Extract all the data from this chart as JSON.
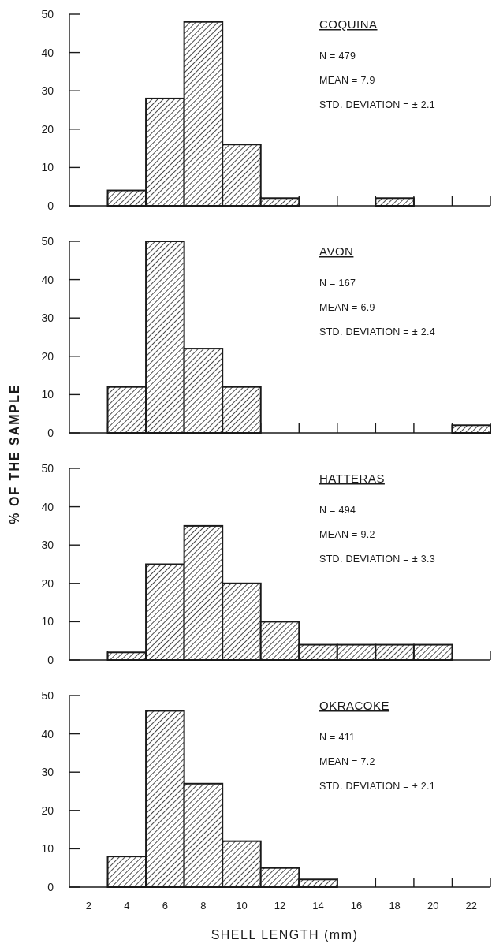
{
  "chart_data": [
    {
      "type": "histogram",
      "title": "COQUINA",
      "annotations": [
        "N = 479",
        "MEAN = 7.9",
        "STD. DEVIATION = ± 2.1"
      ],
      "bins": [
        3,
        5,
        7,
        9,
        11,
        13,
        15,
        17,
        19,
        21,
        23
      ],
      "values": [
        4,
        28,
        48,
        16,
        2,
        0,
        0,
        2,
        0,
        0
      ],
      "color": "#1a1a1a",
      "xlim": [
        1,
        23
      ],
      "ylim": [
        0,
        50
      ],
      "yticks": [
        0,
        10,
        20,
        30,
        40,
        50
      ],
      "xticks": [
        {
          "value": 3,
          "label": null
        },
        {
          "value": 5,
          "label": null
        },
        {
          "value": 7,
          "label": null
        },
        {
          "value": 9,
          "label": null
        },
        {
          "value": 11,
          "label": null
        },
        {
          "value": 13,
          "label": null
        },
        {
          "value": 15,
          "label": null
        },
        {
          "value": 17,
          "label": null
        },
        {
          "value": 19,
          "label": null
        },
        {
          "value": 21,
          "label": null
        },
        {
          "value": 23,
          "label": null
        }
      ],
      "tick_labels": "y",
      "grid": false
    },
    {
      "type": "histogram",
      "title": "AVON",
      "ylabel": "% OF THE SAMPLE",
      "annotations": [
        "N = 167",
        "MEAN = 6.9",
        "STD. DEVIATION = ± 2.4"
      ],
      "bins": [
        3,
        5,
        7,
        9,
        11,
        13,
        15,
        17,
        19,
        21,
        23
      ],
      "values": [
        12,
        50,
        22,
        12,
        0,
        0,
        0,
        0,
        0,
        2
      ],
      "color": "#1a1a1a",
      "xlim": [
        1,
        23
      ],
      "ylim": [
        0,
        50
      ],
      "yticks": [
        0,
        10,
        20,
        30,
        40,
        50
      ],
      "xticks": [
        {
          "value": 3,
          "label": null
        },
        {
          "value": 5,
          "label": null
        },
        {
          "value": 7,
          "label": null
        },
        {
          "value": 9,
          "label": null
        },
        {
          "value": 11,
          "label": null
        },
        {
          "value": 13,
          "label": null
        },
        {
          "value": 15,
          "label": null
        },
        {
          "value": 17,
          "label": null
        },
        {
          "value": 19,
          "label": null
        },
        {
          "value": 21,
          "label": null
        },
        {
          "value": 23,
          "label": null
        }
      ],
      "tick_labels": "y",
      "grid": false
    },
    {
      "type": "histogram",
      "title": "HATTERAS",
      "annotations": [
        "N = 494",
        "MEAN = 9.2",
        "STD. DEVIATION = ± 3.3"
      ],
      "bins": [
        3,
        5,
        7,
        9,
        11,
        13,
        15,
        17,
        19,
        21,
        23
      ],
      "values": [
        2,
        25,
        35,
        20,
        10,
        4,
        4,
        4,
        4,
        0
      ],
      "color": "#1a1a1a",
      "xlim": [
        1,
        23
      ],
      "ylim": [
        0,
        50
      ],
      "yticks": [
        0,
        10,
        20,
        30,
        40,
        50
      ],
      "xticks": [
        {
          "value": 3,
          "label": null
        },
        {
          "value": 5,
          "label": null
        },
        {
          "value": 7,
          "label": null
        },
        {
          "value": 9,
          "label": null
        },
        {
          "value": 11,
          "label": null
        },
        {
          "value": 13,
          "label": null
        },
        {
          "value": 15,
          "label": null
        },
        {
          "value": 17,
          "label": null
        },
        {
          "value": 19,
          "label": null
        },
        {
          "value": 21,
          "label": null
        },
        {
          "value": 23,
          "label": null
        }
      ],
      "tick_labels": "y",
      "grid": false
    },
    {
      "type": "histogram",
      "title": "OKRACOKE",
      "xlabel": "SHELL LENGTH (mm)",
      "annotations": [
        "N = 411",
        "MEAN = 7.2",
        "STD. DEVIATION = ± 2.1"
      ],
      "bins": [
        3,
        5,
        7,
        9,
        11,
        13,
        15,
        17,
        19,
        21,
        23
      ],
      "values": [
        8,
        46,
        27,
        12,
        5,
        2,
        0,
        0,
        0,
        0
      ],
      "color": "#1a1a1a",
      "xlim": [
        1,
        23
      ],
      "ylim": [
        0,
        50
      ],
      "yticks": [
        0,
        10,
        20,
        30,
        40,
        50
      ],
      "xticks": [
        2,
        {
          "value": 3,
          "label": null
        },
        4,
        {
          "value": 5,
          "label": null
        },
        6,
        {
          "value": 7,
          "label": null
        },
        8,
        {
          "value": 9,
          "label": null
        },
        10,
        {
          "value": 11,
          "label": null
        },
        12,
        {
          "value": 13,
          "label": null
        },
        14,
        {
          "value": 15,
          "label": null
        },
        16,
        {
          "value": 17,
          "label": null
        },
        18,
        {
          "value": 19,
          "label": null
        },
        20,
        {
          "value": 21,
          "label": null
        },
        22,
        {
          "value": 23,
          "label": null
        }
      ],
      "grid": false
    }
  ]
}
